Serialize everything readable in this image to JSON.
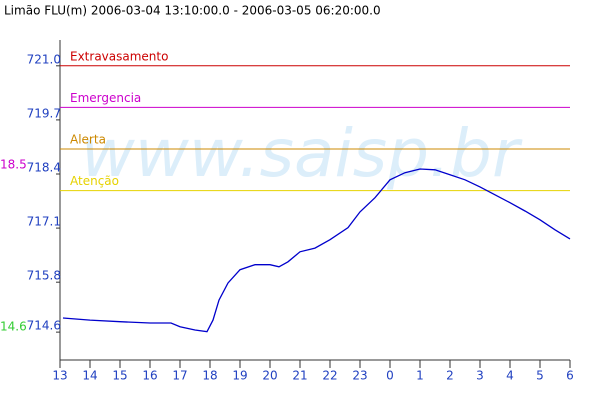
{
  "chart_data": {
    "type": "line",
    "title": "Limão FLU(m) 2006-03-04 13:10:00.0 - 2006-03-05 06:20:00.0",
    "watermark": "www.saisp.br",
    "max_label": "18.5",
    "min_label": "14.6",
    "xlim": [
      13,
      30
    ],
    "xticks": [
      13,
      14,
      15,
      16,
      17,
      18,
      19,
      20,
      21,
      22,
      23,
      {
        "value": 24,
        "label": "0"
      },
      {
        "value": 25,
        "label": "1"
      },
      {
        "value": 26,
        "label": "2"
      },
      {
        "value": 27,
        "label": "3"
      },
      {
        "value": 28,
        "label": "4"
      },
      {
        "value": 29,
        "label": "5"
      },
      {
        "value": 30,
        "label": "6"
      }
    ],
    "ylim": [
      713.93,
      721.62
    ],
    "yticks": [
      714.6,
      715.8,
      717.1,
      718.4,
      719.7,
      {
        "value": 721,
        "label": "721.0"
      }
    ],
    "thresholds": [
      {
        "label": "Extravasamento",
        "value": 721,
        "color": "#cc0000"
      },
      {
        "label": "Emergencia",
        "value": 720,
        "color": "#cc00cc"
      },
      {
        "label": "Alerta",
        "value": 719,
        "color": "#cc8800"
      },
      {
        "label": "Atenção",
        "value": 718,
        "color": "#e6d200"
      }
    ],
    "series": [
      {
        "color": "#0000cc",
        "x": [
          13.1,
          14,
          15,
          16,
          16.7,
          17,
          17.5,
          17.9,
          18.1,
          18.3,
          18.6,
          19,
          19.5,
          20,
          20.3,
          20.6,
          21,
          21.5,
          22,
          22.6,
          23,
          23.5,
          24,
          24.5,
          25,
          25.5,
          26,
          26.5,
          27,
          27.5,
          28,
          28.5,
          29,
          29.5,
          30
        ],
        "values": [
          714.94,
          714.89,
          714.85,
          714.82,
          714.82,
          714.73,
          714.65,
          714.61,
          714.89,
          715.37,
          715.78,
          716.1,
          716.22,
          716.22,
          716.17,
          716.29,
          716.53,
          716.62,
          716.82,
          717.11,
          717.49,
          717.83,
          718.26,
          718.43,
          718.52,
          718.5,
          718.38,
          718.26,
          718.09,
          717.9,
          717.71,
          717.51,
          717.3,
          717.06,
          716.84
        ]
      }
    ]
  }
}
